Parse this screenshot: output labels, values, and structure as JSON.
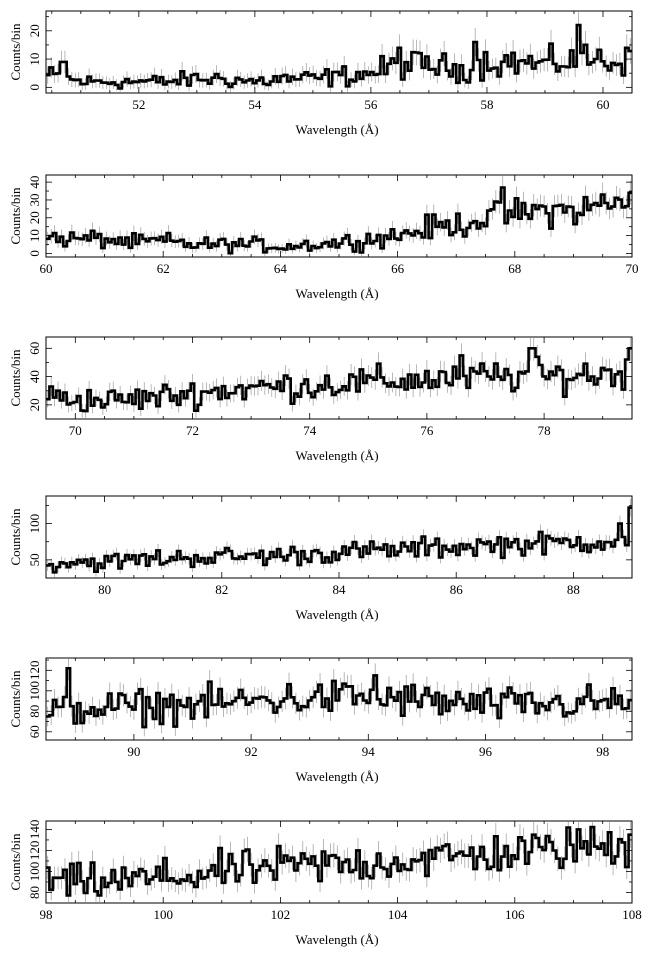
{
  "figure": {
    "ylabel": "Counts/bin",
    "xlabel": "Wavelength (Å)"
  },
  "colors": {
    "line": "#000000",
    "errorbar": "#9a9a9a",
    "axis": "#000000"
  },
  "chart_data": [
    {
      "type": "line",
      "style": "step-histogram-with-errorbars",
      "xlim": [
        50.4,
        60.5
      ],
      "ylim": [
        -2,
        27
      ],
      "xticks": [
        52,
        54,
        56,
        58,
        60
      ],
      "yticks": [
        0,
        10,
        20
      ],
      "xlabel": "Wavelength (Å)",
      "ylabel": "Counts/bin",
      "series": [
        {
          "x": [
            50.5,
            51,
            51.5,
            52,
            52.5,
            53,
            53.5,
            54,
            54.5,
            55,
            55.5,
            56,
            56.5,
            57,
            57.5,
            58,
            58.5,
            59,
            59.5,
            60,
            60.4
          ],
          "values": [
            4,
            2,
            2,
            2,
            2,
            3,
            3,
            2,
            3,
            3,
            4,
            5,
            8,
            8,
            6,
            9,
            9,
            8,
            10,
            10,
            8
          ],
          "spikes": [
            [
              50.7,
              9
            ],
            [
              56.5,
              14
            ],
            [
              57.8,
              16
            ],
            [
              59.6,
              22
            ],
            [
              60.4,
              14
            ]
          ]
        }
      ],
      "grid": false,
      "legend": "none"
    },
    {
      "type": "line",
      "style": "step-histogram-with-errorbars",
      "xlim": [
        60,
        70
      ],
      "ylim": [
        -2,
        44
      ],
      "xticks": [
        60,
        62,
        64,
        66,
        68,
        70
      ],
      "yticks": [
        0,
        10,
        20,
        30,
        40
      ],
      "xlabel": "Wavelength (Å)",
      "ylabel": "Counts/bin",
      "series": [
        {
          "x": [
            60,
            60.5,
            61,
            61.5,
            62,
            62.5,
            63,
            63.5,
            64,
            64.5,
            65,
            65.5,
            66,
            66.5,
            67,
            67.5,
            68,
            68.5,
            69,
            69.5,
            70
          ],
          "values": [
            9,
            8,
            8,
            6,
            7,
            5,
            5,
            5,
            4,
            5,
            6,
            8,
            10,
            14,
            16,
            20,
            22,
            24,
            24,
            26,
            28
          ],
          "spikes": [
            [
              67.8,
              37
            ],
            [
              69.5,
              33
            ],
            [
              70,
              34
            ]
          ]
        }
      ],
      "grid": false,
      "legend": "none"
    },
    {
      "type": "line",
      "style": "step-histogram-with-errorbars",
      "xlim": [
        69.5,
        79.5
      ],
      "ylim": [
        10,
        68
      ],
      "xticks": [
        70,
        72,
        74,
        76,
        78
      ],
      "yticks": [
        20,
        40,
        60
      ],
      "xlabel": "Wavelength (Å)",
      "ylabel": "Counts/bin",
      "series": [
        {
          "x": [
            69.5,
            70,
            70.5,
            71,
            71.5,
            72,
            72.5,
            73,
            73.5,
            74,
            74.5,
            75,
            75.5,
            76,
            76.5,
            77,
            77.5,
            78,
            78.5,
            79,
            79.5
          ],
          "values": [
            26,
            24,
            23,
            24,
            26,
            28,
            30,
            32,
            33,
            34,
            35,
            36,
            37,
            38,
            39,
            40,
            40,
            40,
            41,
            42,
            44
          ],
          "spikes": [
            [
              76.6,
              55
            ],
            [
              77.8,
              60
            ],
            [
              79.5,
              60
            ]
          ]
        }
      ],
      "grid": false,
      "legend": "none"
    },
    {
      "type": "line",
      "style": "step-histogram-with-errorbars",
      "xlim": [
        79,
        89
      ],
      "ylim": [
        25,
        138
      ],
      "xticks": [
        80,
        82,
        84,
        86,
        88
      ],
      "yticks": [
        50,
        100
      ],
      "xlabel": "Wavelength (Å)",
      "ylabel": "Counts/bin",
      "series": [
        {
          "x": [
            79,
            79.5,
            80,
            80.5,
            81,
            81.5,
            82,
            82.5,
            83,
            83.5,
            84,
            84.5,
            85,
            85.5,
            86,
            86.5,
            87,
            87.5,
            88,
            88.5,
            89
          ],
          "values": [
            44,
            48,
            46,
            50,
            52,
            54,
            54,
            55,
            56,
            58,
            60,
            62,
            64,
            66,
            68,
            70,
            72,
            72,
            74,
            76,
            80
          ],
          "spikes": [
            [
              88.8,
              100
            ],
            [
              89,
              122
            ]
          ]
        }
      ],
      "grid": false,
      "legend": "none"
    },
    {
      "type": "line",
      "style": "step-histogram-with-errorbars",
      "xlim": [
        88.5,
        98.5
      ],
      "ylim": [
        52,
        132
      ],
      "xticks": [
        90,
        92,
        94,
        96,
        98
      ],
      "yticks": [
        60,
        80,
        100,
        120
      ],
      "xlabel": "Wavelength (Å)",
      "ylabel": "Counts/bin",
      "series": [
        {
          "x": [
            88.5,
            89,
            89.5,
            90,
            90.5,
            91,
            91.5,
            92,
            92.5,
            93,
            93.5,
            94,
            94.5,
            95,
            95.5,
            96,
            96.5,
            97,
            97.5,
            98,
            98.5
          ],
          "values": [
            78,
            82,
            84,
            84,
            86,
            86,
            88,
            90,
            92,
            92,
            94,
            94,
            92,
            90,
            88,
            86,
            86,
            86,
            88,
            88,
            90
          ],
          "spikes": [
            [
              88.9,
              122
            ],
            [
              94.1,
              115
            ]
          ]
        }
      ],
      "grid": false,
      "legend": "none"
    },
    {
      "type": "line",
      "style": "step-histogram-with-errorbars",
      "xlim": [
        98,
        108
      ],
      "ylim": [
        70,
        148
      ],
      "xticks": [
        98,
        100,
        102,
        104,
        106,
        108
      ],
      "yticks": [
        80,
        100,
        120,
        140
      ],
      "xlabel": "Wavelength (Å)",
      "ylabel": "Counts/bin",
      "series": [
        {
          "x": [
            98,
            98.5,
            99,
            99.5,
            100,
            100.5,
            101,
            101.5,
            102,
            102.5,
            103,
            103.5,
            104,
            104.5,
            105,
            105.5,
            106,
            106.5,
            107,
            107.5,
            108
          ],
          "values": [
            90,
            89,
            90,
            92,
            94,
            96,
            100,
            102,
            104,
            106,
            106,
            108,
            110,
            112,
            114,
            116,
            118,
            120,
            122,
            124,
            124
          ],
          "spikes": [
            [
              107.1,
              140
            ],
            [
              108,
              135
            ]
          ]
        }
      ],
      "grid": false,
      "legend": "none"
    }
  ]
}
